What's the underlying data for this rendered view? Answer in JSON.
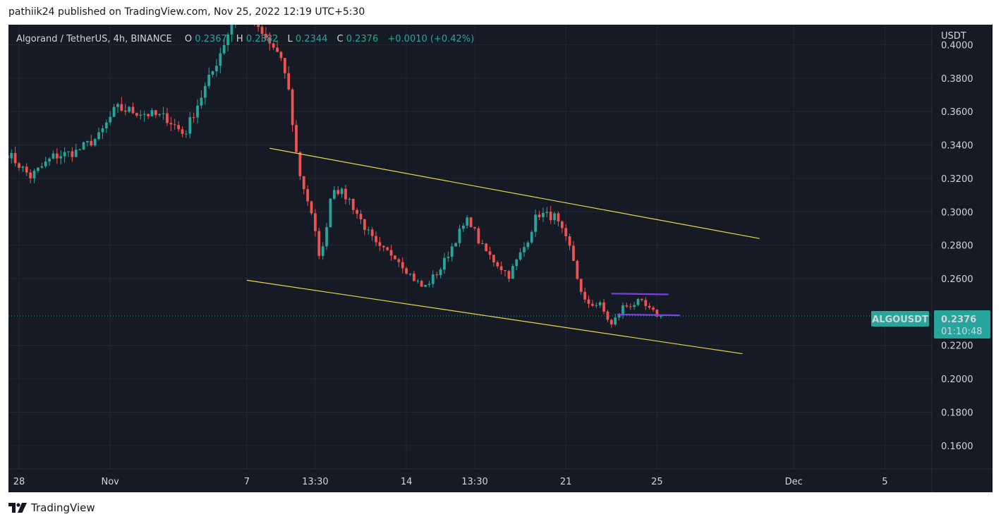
{
  "header": {
    "text": "pathiik24 published on TradingView.com, Nov 25, 2022 12:19 UTC+5:30"
  },
  "footer": {
    "brand": "TradingView",
    "logo_icon": "tradingview-logo-icon"
  },
  "chart_data": {
    "type": "candlestick",
    "symbol_title": "Algorand / TetherUS, 4h, BINANCE",
    "ohlc_legend": {
      "o_label": "O",
      "o_value": "0.2367",
      "h_label": "H",
      "h_value": "0.2382",
      "l_label": "L",
      "l_value": "0.2344",
      "c_label": "C",
      "c_value": "0.2376",
      "change": "+0.0010 (+0.42%)"
    },
    "currency": "USDT",
    "ylim": [
      0.146,
      0.412
    ],
    "y_ticks": [
      "0.4000",
      "0.3800",
      "0.3600",
      "0.3400",
      "0.3200",
      "0.3000",
      "0.2800",
      "0.2600",
      "0.2200",
      "0.2000",
      "0.1800",
      "0.1600"
    ],
    "x_ticks": [
      {
        "label": "28",
        "date": "2022-10-28"
      },
      {
        "label": "Nov",
        "date": "2022-11-01"
      },
      {
        "label": "7",
        "date": "2022-11-07"
      },
      {
        "label": "13:30",
        "date": "2022-11-10"
      },
      {
        "label": "14",
        "date": "2022-11-14"
      },
      {
        "label": "13:30",
        "date": "2022-11-17"
      },
      {
        "label": "21",
        "date": "2022-11-21"
      },
      {
        "label": "25",
        "date": "2022-11-25"
      },
      {
        "label": "Dec",
        "date": "2022-12-01"
      },
      {
        "label": "5",
        "date": "2022-12-05"
      }
    ],
    "price_label": {
      "symbol": "ALGOUSDT",
      "price": "0.2376",
      "countdown": "01:10:48",
      "value": 0.2376
    },
    "colors": {
      "up": "#26a69a",
      "down": "#ef5350",
      "background": "#161a25",
      "grid": "#242733",
      "trendline": "#e5d84b",
      "range_line": "#7b3fe4",
      "label_bg": "#26a69a"
    },
    "waypoints": [
      [
        "2022-10-27T12:00",
        0.335
      ],
      [
        "2022-10-28T12:00",
        0.321
      ],
      [
        "2022-10-29T12:00",
        0.333
      ],
      [
        "2022-10-30T12:00",
        0.336
      ],
      [
        "2022-10-31T12:00",
        0.345
      ],
      [
        "2022-11-01T06:00",
        0.362
      ],
      [
        "2022-11-02T12:00",
        0.359
      ],
      [
        "2022-11-03T12:00",
        0.356
      ],
      [
        "2022-11-04T06:00",
        0.346
      ],
      [
        "2022-11-04T18:00",
        0.362
      ],
      [
        "2022-11-05T12:00",
        0.384
      ],
      [
        "2022-11-06T06:00",
        0.41
      ],
      [
        "2022-11-06T18:00",
        0.432
      ],
      [
        "2022-11-07T12:00",
        0.408
      ],
      [
        "2022-11-08T06:00",
        0.397
      ],
      [
        "2022-11-08T18:00",
        0.381
      ],
      [
        "2022-11-09T06:00",
        0.326
      ],
      [
        "2022-11-09T18:00",
        0.303
      ],
      [
        "2022-11-10T06:00",
        0.27
      ],
      [
        "2022-11-10T18:00",
        0.316
      ],
      [
        "2022-11-11T12:00",
        0.307
      ],
      [
        "2022-11-12T06:00",
        0.289
      ],
      [
        "2022-11-12T18:00",
        0.278
      ],
      [
        "2022-11-13T12:00",
        0.274
      ],
      [
        "2022-11-14T06:00",
        0.261
      ],
      [
        "2022-11-14T18:00",
        0.254
      ],
      [
        "2022-11-15T12:00",
        0.266
      ],
      [
        "2022-11-16T06:00",
        0.286
      ],
      [
        "2022-11-16T18:00",
        0.296
      ],
      [
        "2022-11-17T06:00",
        0.28
      ],
      [
        "2022-11-17T18:00",
        0.272
      ],
      [
        "2022-11-18T12:00",
        0.262
      ],
      [
        "2022-11-19T06:00",
        0.281
      ],
      [
        "2022-11-19T18:00",
        0.299
      ],
      [
        "2022-11-20T12:00",
        0.297
      ],
      [
        "2022-11-21T06:00",
        0.276
      ],
      [
        "2022-11-21T18:00",
        0.246
      ],
      [
        "2022-11-22T12:00",
        0.244
      ],
      [
        "2022-11-23T00:00",
        0.232
      ],
      [
        "2022-11-23T12:00",
        0.243
      ],
      [
        "2022-11-24T06:00",
        0.246
      ],
      [
        "2022-11-24T18:00",
        0.24
      ],
      [
        "2022-11-25T04:00",
        0.2376
      ]
    ],
    "trendlines": [
      {
        "name": "upper-channel",
        "color": "yellow",
        "start": [
          "2022-11-08T00:00",
          0.338
        ],
        "end": [
          "2022-11-29T12:00",
          0.284
        ]
      },
      {
        "name": "lower-channel",
        "color": "yellow",
        "start": [
          "2022-11-07T00:00",
          0.259
        ],
        "end": [
          "2022-11-28T18:00",
          0.215
        ]
      },
      {
        "name": "range-top",
        "color": "purple",
        "start": [
          "2022-11-23T00:00",
          0.251
        ],
        "end": [
          "2022-11-25T12:00",
          0.2505
        ]
      },
      {
        "name": "range-bottom",
        "color": "purple",
        "start": [
          "2022-11-23T06:00",
          0.2385
        ],
        "end": [
          "2022-11-26T00:00",
          0.238
        ]
      }
    ],
    "grid": true,
    "legend_position": "top-left"
  }
}
